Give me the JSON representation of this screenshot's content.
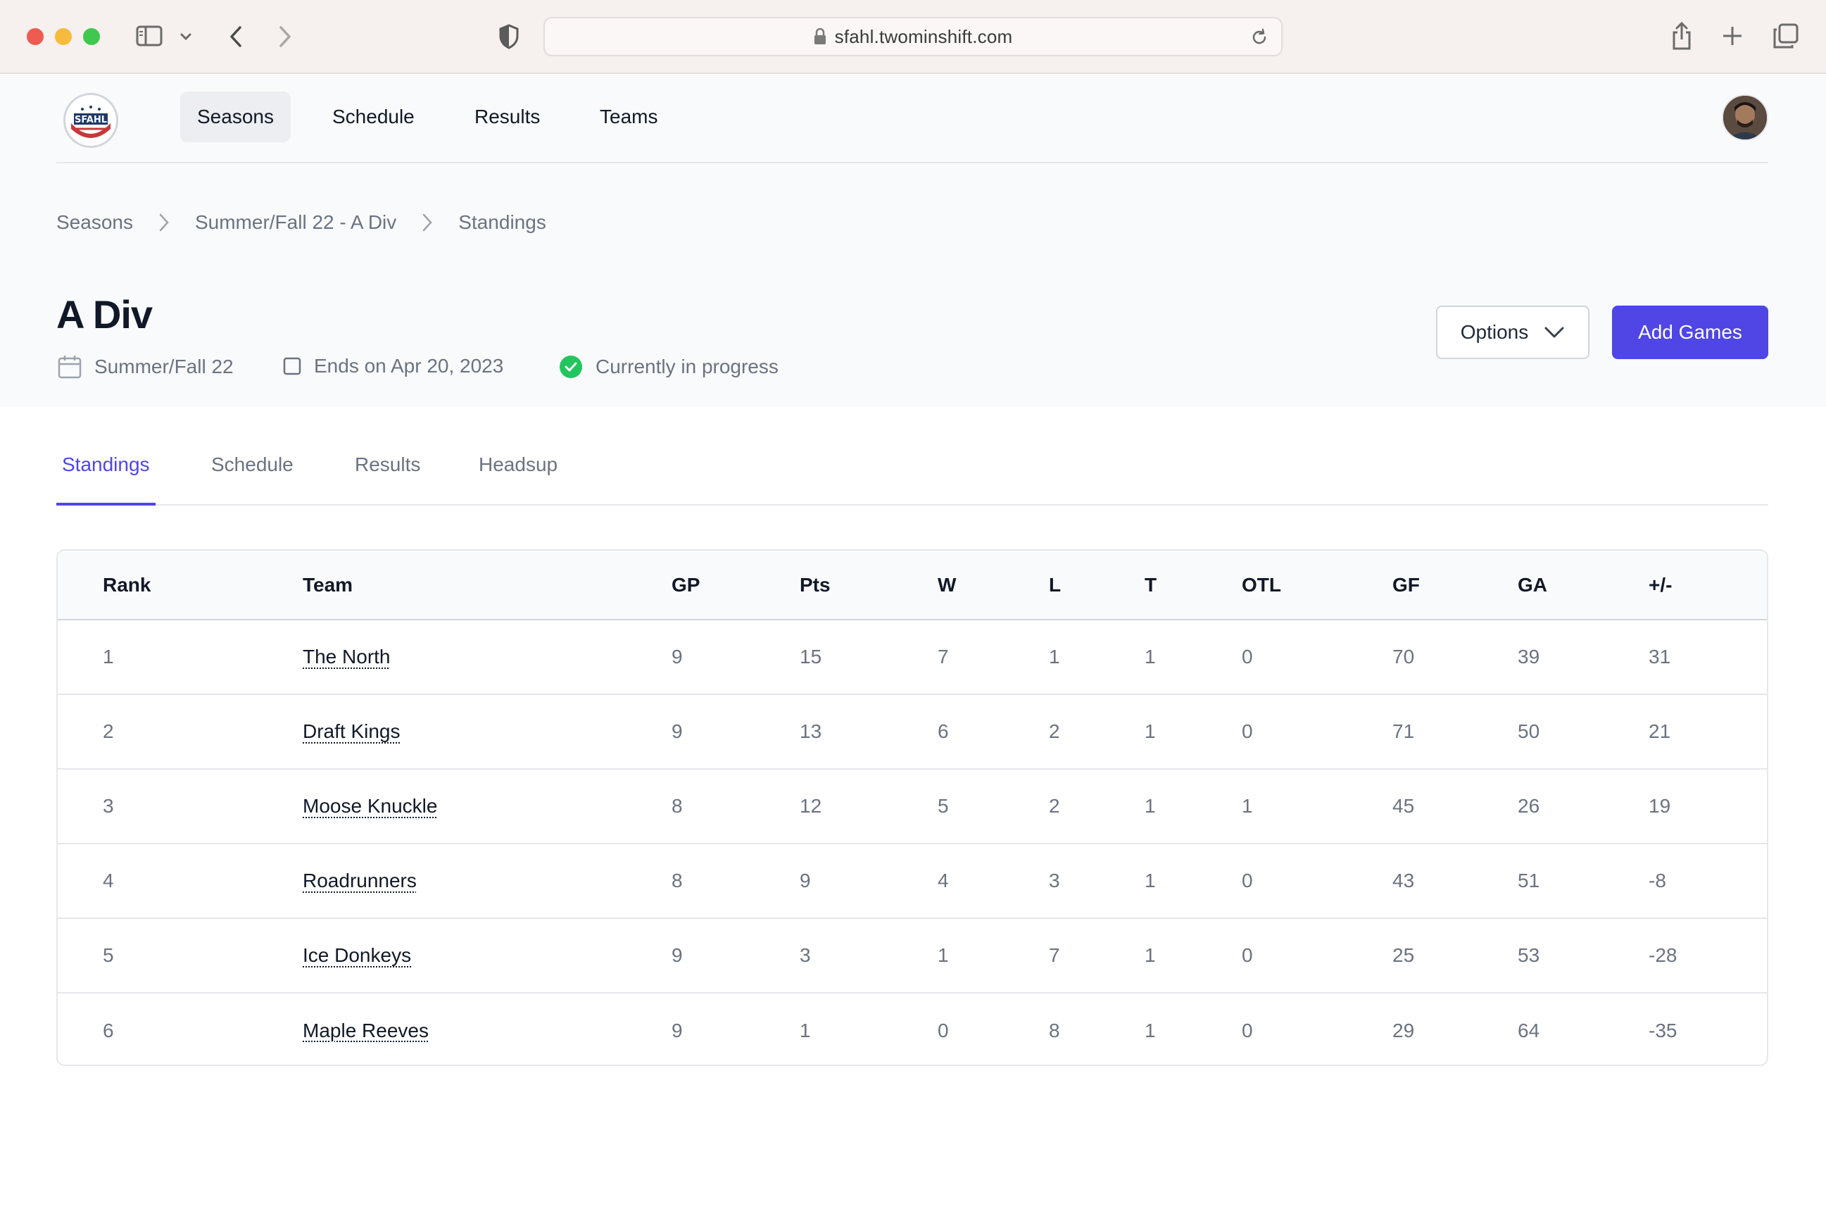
{
  "browser": {
    "url": "sfahl.twominshift.com"
  },
  "nav": {
    "items": [
      {
        "label": "Seasons",
        "active": true
      },
      {
        "label": "Schedule",
        "active": false
      },
      {
        "label": "Results",
        "active": false
      },
      {
        "label": "Teams",
        "active": false
      }
    ]
  },
  "breadcrumb": [
    "Seasons",
    "Summer/Fall 22 - A Div",
    "Standings"
  ],
  "page": {
    "title": "A Div",
    "season": "Summer/Fall 22",
    "ends": "Ends on Apr 20, 2023",
    "status": "Currently in progress",
    "status_color": "#22c55e"
  },
  "actions": {
    "options_label": "Options",
    "add_label": "Add Games",
    "accent": "#4f46e5"
  },
  "tabs": [
    {
      "label": "Standings",
      "active": true
    },
    {
      "label": "Schedule",
      "active": false
    },
    {
      "label": "Results",
      "active": false
    },
    {
      "label": "Headsup",
      "active": false
    }
  ],
  "standings": {
    "columns": [
      "Rank",
      "Team",
      "GP",
      "Pts",
      "W",
      "L",
      "T",
      "OTL",
      "GF",
      "GA",
      "+/-"
    ],
    "rows": [
      {
        "rank": "1",
        "team": "The North",
        "gp": "9",
        "pts": "15",
        "w": "7",
        "l": "1",
        "t": "1",
        "otl": "0",
        "gf": "70",
        "ga": "39",
        "diff": "31"
      },
      {
        "rank": "2",
        "team": "Draft Kings",
        "gp": "9",
        "pts": "13",
        "w": "6",
        "l": "2",
        "t": "1",
        "otl": "0",
        "gf": "71",
        "ga": "50",
        "diff": "21"
      },
      {
        "rank": "3",
        "team": "Moose Knuckle",
        "gp": "8",
        "pts": "12",
        "w": "5",
        "l": "2",
        "t": "1",
        "otl": "1",
        "gf": "45",
        "ga": "26",
        "diff": "19"
      },
      {
        "rank": "4",
        "team": "Roadrunners",
        "gp": "8",
        "pts": "9",
        "w": "4",
        "l": "3",
        "t": "1",
        "otl": "0",
        "gf": "43",
        "ga": "51",
        "diff": "-8"
      },
      {
        "rank": "5",
        "team": "Ice Donkeys",
        "gp": "9",
        "pts": "3",
        "w": "1",
        "l": "7",
        "t": "1",
        "otl": "0",
        "gf": "25",
        "ga": "53",
        "diff": "-28"
      },
      {
        "rank": "6",
        "team": "Maple Reeves",
        "gp": "9",
        "pts": "1",
        "w": "0",
        "l": "8",
        "t": "1",
        "otl": "0",
        "gf": "29",
        "ga": "64",
        "diff": "-35"
      }
    ]
  }
}
